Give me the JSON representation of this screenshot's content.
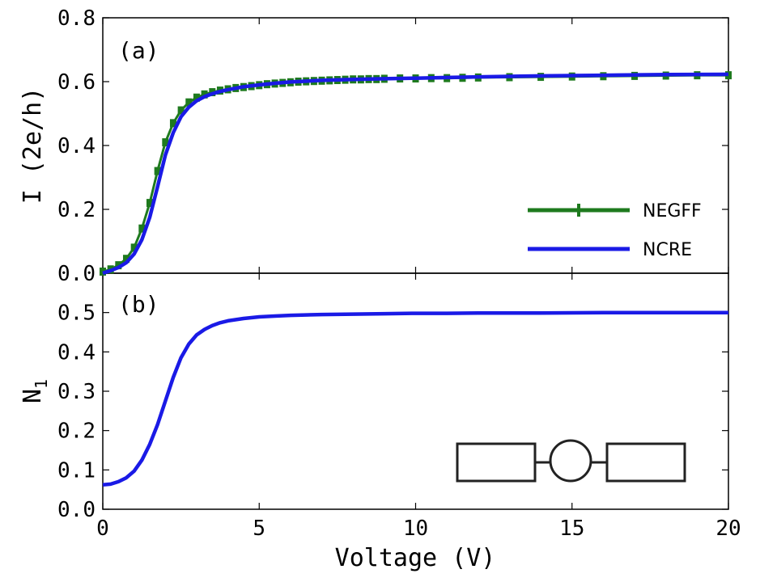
{
  "chart_data": [
    {
      "type": "line",
      "panel_label": "(a)",
      "ylabel": "I (2e/h)",
      "xlim": [
        0,
        20
      ],
      "ylim": [
        0,
        0.8
      ],
      "yticks": [
        "0.0",
        "0.2",
        "0.4",
        "0.6",
        "0.8"
      ],
      "legend": {
        "position": "lower-right",
        "entries": [
          "NEGFF",
          "NCRE"
        ]
      },
      "series": [
        {
          "name": "NEGFF",
          "color": "#1e7a1e",
          "marker": "tick-marker",
          "x": [
            0.0,
            0.25,
            0.5,
            0.75,
            1.0,
            1.25,
            1.5,
            1.75,
            2.0,
            2.25,
            2.5,
            2.75,
            3.0,
            3.25,
            3.5,
            3.75,
            4.0,
            4.25,
            4.5,
            4.75,
            5.0,
            5.25,
            5.5,
            5.75,
            6.0,
            6.25,
            6.5,
            6.75,
            7.0,
            7.25,
            7.5,
            7.75,
            8.0,
            8.25,
            8.5,
            8.75,
            9.0,
            9.5,
            10.0,
            10.5,
            11.0,
            11.5,
            12.0,
            13.0,
            14.0,
            15.0,
            16.0,
            17.0,
            18.0,
            19.0,
            20.0
          ],
          "y": [
            0.005,
            0.012,
            0.025,
            0.045,
            0.08,
            0.14,
            0.22,
            0.32,
            0.41,
            0.47,
            0.51,
            0.535,
            0.55,
            0.56,
            0.567,
            0.572,
            0.576,
            0.58,
            0.583,
            0.586,
            0.589,
            0.592,
            0.594,
            0.596,
            0.598,
            0.6,
            0.601,
            0.602,
            0.603,
            0.604,
            0.605,
            0.606,
            0.607,
            0.607,
            0.608,
            0.608,
            0.609,
            0.61,
            0.61,
            0.611,
            0.611,
            0.612,
            0.613,
            0.614,
            0.615,
            0.616,
            0.617,
            0.618,
            0.619,
            0.62,
            0.62
          ]
        },
        {
          "name": "NCRE",
          "color": "#1a1ae6",
          "x": [
            0.0,
            0.25,
            0.5,
            0.75,
            1.0,
            1.25,
            1.5,
            1.75,
            2.0,
            2.25,
            2.5,
            2.75,
            3.0,
            3.25,
            3.5,
            3.75,
            4.0,
            4.5,
            5.0,
            5.5,
            6.0,
            7.0,
            8.0,
            9.0,
            10.0,
            11.0,
            12.0,
            14.0,
            16.0,
            18.0,
            20.0
          ],
          "y": [
            0.0,
            0.008,
            0.018,
            0.033,
            0.06,
            0.105,
            0.175,
            0.27,
            0.37,
            0.44,
            0.49,
            0.52,
            0.54,
            0.553,
            0.562,
            0.569,
            0.575,
            0.584,
            0.59,
            0.595,
            0.599,
            0.604,
            0.607,
            0.609,
            0.611,
            0.613,
            0.615,
            0.618,
            0.62,
            0.622,
            0.623
          ]
        }
      ]
    },
    {
      "type": "line",
      "panel_label": "(b)",
      "ylabel_main": "N",
      "ylabel_sub": "1",
      "xlabel": "Voltage (V)",
      "xlim": [
        0,
        20
      ],
      "ylim": [
        0,
        0.6
      ],
      "xticks": [
        "0",
        "5",
        "10",
        "15",
        "20"
      ],
      "yticks": [
        "0.0",
        "0.1",
        "0.2",
        "0.3",
        "0.4",
        "0.5"
      ],
      "series": [
        {
          "name": "N1",
          "color": "#1a1ae6",
          "x": [
            0.0,
            0.25,
            0.5,
            0.75,
            1.0,
            1.25,
            1.5,
            1.75,
            2.0,
            2.25,
            2.5,
            2.75,
            3.0,
            3.25,
            3.5,
            3.75,
            4.0,
            4.5,
            5.0,
            5.5,
            6.0,
            7.0,
            8.0,
            9.0,
            10.0,
            11.0,
            12.0,
            14.0,
            16.0,
            18.0,
            20.0
          ],
          "y": [
            0.062,
            0.064,
            0.07,
            0.08,
            0.097,
            0.125,
            0.165,
            0.215,
            0.275,
            0.335,
            0.385,
            0.42,
            0.443,
            0.457,
            0.467,
            0.474,
            0.479,
            0.485,
            0.489,
            0.491,
            0.493,
            0.495,
            0.496,
            0.497,
            0.498,
            0.498,
            0.499,
            0.499,
            0.5,
            0.5,
            0.5
          ]
        }
      ],
      "inset": "device-schematic"
    }
  ]
}
